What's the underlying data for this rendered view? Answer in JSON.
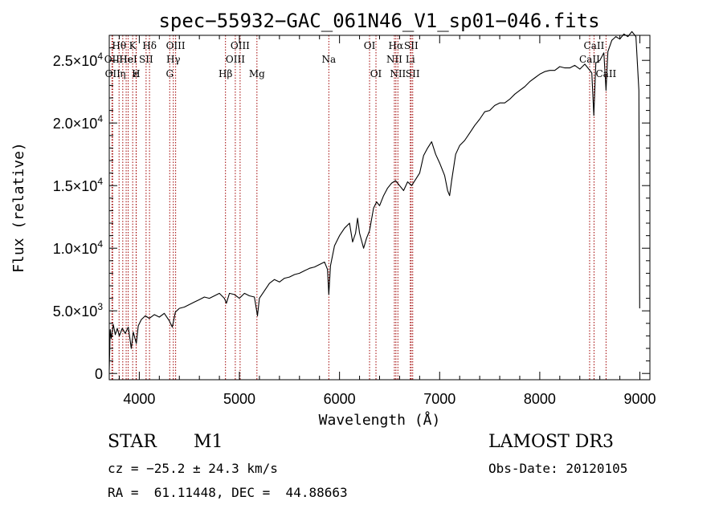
{
  "chart_data": {
    "type": "line",
    "title": "spec−55932−GAC_061N46_V1_sp01−046.fits",
    "xlabel": "Wavelength (Å)",
    "ylabel": "Flux (relative)",
    "xlim": [
      3700,
      9100
    ],
    "ylim": [
      -500,
      27000
    ],
    "x_ticks": [
      {
        "value": 4000,
        "label": "4000"
      },
      {
        "value": 5000,
        "label": "5000"
      },
      {
        "value": 6000,
        "label": "6000"
      },
      {
        "value": 7000,
        "label": "7000"
      },
      {
        "value": 8000,
        "label": "8000"
      },
      {
        "value": 9000,
        "label": "9000"
      }
    ],
    "y_ticks": [
      {
        "value": 0,
        "mantissa": "0",
        "exp": ""
      },
      {
        "value": 5000,
        "mantissa": "5.0×10",
        "exp": "3"
      },
      {
        "value": 10000,
        "mantissa": "1.0×10",
        "exp": "4"
      },
      {
        "value": 15000,
        "mantissa": "1.5×10",
        "exp": "4"
      },
      {
        "value": 20000,
        "mantissa": "2.0×10",
        "exp": "4"
      },
      {
        "value": 25000,
        "mantissa": "2.5×10",
        "exp": "4"
      }
    ],
    "series": [
      {
        "name": "spectrum",
        "points": [
          [
            3700,
            300
          ],
          [
            3710,
            3500
          ],
          [
            3720,
            2800
          ],
          [
            3740,
            3900
          ],
          [
            3760,
            3100
          ],
          [
            3780,
            3600
          ],
          [
            3800,
            3000
          ],
          [
            3830,
            3600
          ],
          [
            3860,
            3200
          ],
          [
            3890,
            3700
          ],
          [
            3920,
            2000
          ],
          [
            3940,
            3300
          ],
          [
            3970,
            2400
          ],
          [
            3990,
            3800
          ],
          [
            4020,
            4300
          ],
          [
            4060,
            4600
          ],
          [
            4100,
            4400
          ],
          [
            4150,
            4700
          ],
          [
            4200,
            4500
          ],
          [
            4250,
            4800
          ],
          [
            4300,
            4200
          ],
          [
            4330,
            3700
          ],
          [
            4360,
            4900
          ],
          [
            4400,
            5200
          ],
          [
            4450,
            5300
          ],
          [
            4500,
            5500
          ],
          [
            4550,
            5700
          ],
          [
            4600,
            5900
          ],
          [
            4650,
            6100
          ],
          [
            4700,
            6000
          ],
          [
            4750,
            6200
          ],
          [
            4800,
            6400
          ],
          [
            4850,
            6000
          ],
          [
            4870,
            5600
          ],
          [
            4900,
            6400
          ],
          [
            4950,
            6300
          ],
          [
            5000,
            6000
          ],
          [
            5050,
            6400
          ],
          [
            5100,
            6200
          ],
          [
            5150,
            6100
          ],
          [
            5180,
            4600
          ],
          [
            5200,
            6000
          ],
          [
            5250,
            6600
          ],
          [
            5300,
            7200
          ],
          [
            5350,
            7500
          ],
          [
            5400,
            7300
          ],
          [
            5450,
            7600
          ],
          [
            5500,
            7700
          ],
          [
            5550,
            7900
          ],
          [
            5600,
            8000
          ],
          [
            5650,
            8200
          ],
          [
            5700,
            8400
          ],
          [
            5750,
            8500
          ],
          [
            5800,
            8700
          ],
          [
            5850,
            8900
          ],
          [
            5880,
            8300
          ],
          [
            5893,
            6300
          ],
          [
            5910,
            8600
          ],
          [
            5950,
            10200
          ],
          [
            6000,
            11000
          ],
          [
            6050,
            11600
          ],
          [
            6100,
            12000
          ],
          [
            6130,
            10500
          ],
          [
            6160,
            11200
          ],
          [
            6180,
            12400
          ],
          [
            6200,
            11200
          ],
          [
            6240,
            10000
          ],
          [
            6270,
            10800
          ],
          [
            6300,
            11400
          ],
          [
            6320,
            12300
          ],
          [
            6340,
            13200
          ],
          [
            6370,
            13700
          ],
          [
            6400,
            13400
          ],
          [
            6440,
            14200
          ],
          [
            6480,
            14800
          ],
          [
            6520,
            15200
          ],
          [
            6560,
            15400
          ],
          [
            6600,
            15000
          ],
          [
            6640,
            14600
          ],
          [
            6680,
            15300
          ],
          [
            6720,
            15000
          ],
          [
            6760,
            15500
          ],
          [
            6800,
            16000
          ],
          [
            6840,
            17400
          ],
          [
            6880,
            18000
          ],
          [
            6920,
            18500
          ],
          [
            6960,
            17500
          ],
          [
            7000,
            16800
          ],
          [
            7050,
            15800
          ],
          [
            7080,
            14600
          ],
          [
            7100,
            14200
          ],
          [
            7120,
            15400
          ],
          [
            7160,
            17500
          ],
          [
            7200,
            18200
          ],
          [
            7250,
            18600
          ],
          [
            7300,
            19200
          ],
          [
            7350,
            19800
          ],
          [
            7400,
            20300
          ],
          [
            7450,
            20900
          ],
          [
            7500,
            21000
          ],
          [
            7550,
            21400
          ],
          [
            7600,
            21600
          ],
          [
            7650,
            21600
          ],
          [
            7700,
            21900
          ],
          [
            7750,
            22300
          ],
          [
            7800,
            22600
          ],
          [
            7850,
            22900
          ],
          [
            7900,
            23300
          ],
          [
            7950,
            23600
          ],
          [
            8000,
            23900
          ],
          [
            8050,
            24100
          ],
          [
            8100,
            24200
          ],
          [
            8150,
            24200
          ],
          [
            8200,
            24500
          ],
          [
            8250,
            24400
          ],
          [
            8300,
            24400
          ],
          [
            8350,
            24600
          ],
          [
            8400,
            24300
          ],
          [
            8450,
            24700
          ],
          [
            8490,
            24300
          ],
          [
            8520,
            24000
          ],
          [
            8540,
            20600
          ],
          [
            8560,
            24800
          ],
          [
            8600,
            25000
          ],
          [
            8640,
            25600
          ],
          [
            8662,
            22600
          ],
          [
            8680,
            25700
          ],
          [
            8720,
            26600
          ],
          [
            8760,
            26900
          ],
          [
            8800,
            26700
          ],
          [
            8840,
            27100
          ],
          [
            8880,
            26900
          ],
          [
            8920,
            27300
          ],
          [
            8960,
            26900
          ],
          [
            8990,
            22600
          ],
          [
            8998,
            5200
          ]
        ]
      }
    ],
    "lines": [
      {
        "wavelength": 3727,
        "label": "OII",
        "row": 1
      },
      {
        "wavelength": 3734,
        "label": "OII",
        "row": 2
      },
      {
        "wavelength": 3798,
        "label": "Hθ",
        "row": 0
      },
      {
        "wavelength": 3835,
        "label": "η",
        "row": 2
      },
      {
        "wavelength": 3869,
        "label": "He",
        "row": 1
      },
      {
        "wavelength": 3889,
        "label": "HeI",
        "row": 1
      },
      {
        "wavelength": 3934,
        "label": "K",
        "row": 0
      },
      {
        "wavelength": 3968,
        "label": "H",
        "row": 2
      },
      {
        "wavelength": 3970,
        "label": "ε",
        "row": 2
      },
      {
        "wavelength": 4068,
        "label": "SII",
        "row": 1
      },
      {
        "wavelength": 4102,
        "label": "Hδ",
        "row": 0
      },
      {
        "wavelength": 4304,
        "label": "G",
        "row": 2
      },
      {
        "wavelength": 4340,
        "label": "Hγ",
        "row": 1
      },
      {
        "wavelength": 4363,
        "label": "OIII",
        "row": 0
      },
      {
        "wavelength": 4861,
        "label": "Hβ",
        "row": 2
      },
      {
        "wavelength": 4959,
        "label": "OIII",
        "row": 1
      },
      {
        "wavelength": 5007,
        "label": "OIII",
        "row": 0
      },
      {
        "wavelength": 5175,
        "label": "Mg",
        "row": 2
      },
      {
        "wavelength": 5893,
        "label": "Na",
        "row": 1
      },
      {
        "wavelength": 6300,
        "label": "OI",
        "row": 0
      },
      {
        "wavelength": 6364,
        "label": "OI",
        "row": 2
      },
      {
        "wavelength": 6548,
        "label": "NII",
        "row": 1
      },
      {
        "wavelength": 6563,
        "label": "Hα",
        "row": 0
      },
      {
        "wavelength": 6583,
        "label": "NII",
        "row": 2
      },
      {
        "wavelength": 6707,
        "label": "Li",
        "row": 1
      },
      {
        "wavelength": 6716,
        "label": "SII",
        "row": 0
      },
      {
        "wavelength": 6731,
        "label": "SII",
        "row": 2
      },
      {
        "wavelength": 8498,
        "label": "CaII",
        "row": 1
      },
      {
        "wavelength": 8542,
        "label": "CaII",
        "row": 0
      },
      {
        "wavelength": 8662,
        "label": "CaII",
        "row": 2
      }
    ],
    "colors": {
      "line": "#000000",
      "marker": "#a00000",
      "axis": "#000000"
    }
  },
  "info": {
    "object_class": "STAR",
    "subclass": "M1",
    "survey": "LAMOST DR3",
    "redshift": "cz = −25.2 ± 24.3 km/s",
    "obs_date": "Obs-Date: 20120105",
    "coords": "RA =  61.11448, DEC =  44.88663"
  }
}
